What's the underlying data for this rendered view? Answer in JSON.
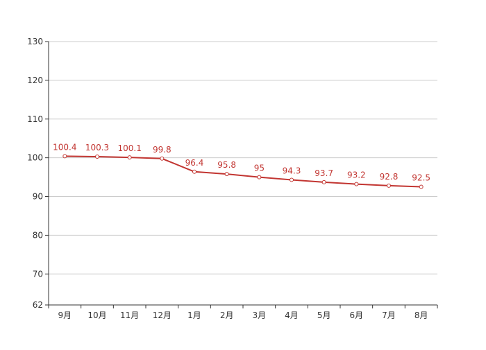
{
  "chart_data": {
    "type": "line",
    "categories": [
      "9月",
      "10月",
      "11月",
      "12月",
      "1月",
      "2月",
      "3月",
      "4月",
      "5月",
      "6月",
      "7月",
      "8月"
    ],
    "series": [
      {
        "values": [
          100.4,
          100.3,
          100.1,
          99.8,
          96.4,
          95.8,
          95,
          94.3,
          93.7,
          93.2,
          92.8,
          92.5
        ],
        "color": "#c23531",
        "data_labels": [
          "100.4",
          "100.3",
          "100.1",
          "99.8",
          "96.4",
          "95.8",
          "95",
          "94.3",
          "93.7",
          "93.2",
          "92.8",
          "92.5"
        ]
      }
    ],
    "y_ticks": [
      "62",
      "70",
      "80",
      "90",
      "100",
      "110",
      "120",
      "130"
    ],
    "y_tick_values": [
      62,
      70,
      80,
      90,
      100,
      110,
      120,
      130
    ],
    "ylim": [
      62,
      130
    ],
    "grid": true,
    "legend": "none"
  }
}
